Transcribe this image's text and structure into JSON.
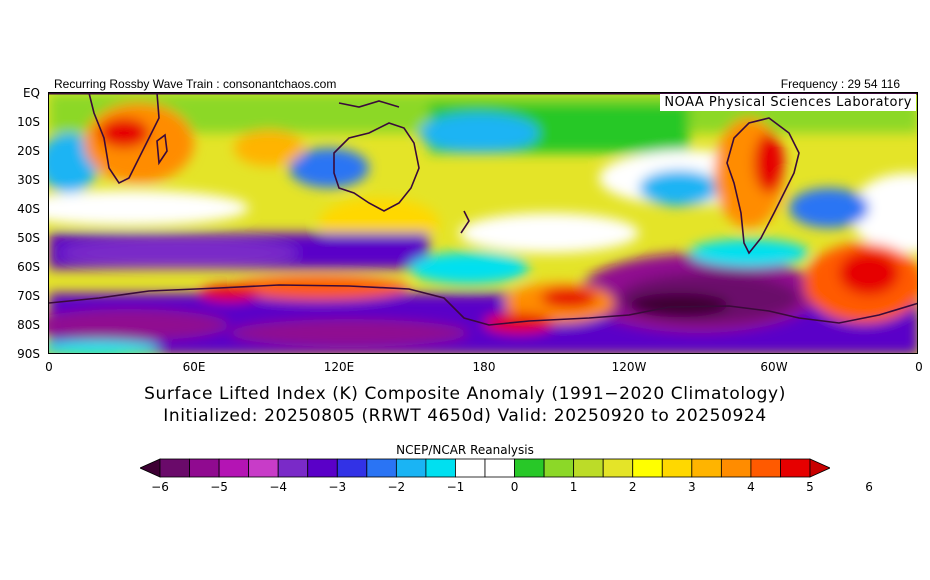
{
  "header": {
    "left": "Recurring Rossby Wave Train : consonantchaos.com",
    "right": "Frequency : 29 54 116",
    "lab": "NOAA Physical Sciences Laboratory"
  },
  "axes": {
    "lat_labels": [
      "EQ",
      "10S",
      "20S",
      "30S",
      "40S",
      "50S",
      "60S",
      "70S",
      "80S",
      "90S"
    ],
    "lon_labels": [
      "0",
      "60E",
      "120E",
      "180",
      "120W",
      "60W",
      "0"
    ]
  },
  "title": {
    "line1": "Surface Lifted Index (K) Composite Anomaly (1991−2020 Climatology)",
    "line2": "Initialized: 20250805 (RRWT 4650d) Valid: 20250920 to 20250924"
  },
  "colorbar": {
    "title": "NCEP/NCAR Reanalysis",
    "tick_labels": [
      "−6",
      "−5",
      "−4",
      "−3",
      "−2",
      "−1",
      "0",
      "1",
      "2",
      "3",
      "4",
      "5",
      "6"
    ],
    "colors": [
      "#3d0033",
      "#6a0a6a",
      "#900a90",
      "#b414b4",
      "#c83cc8",
      "#7a2ac8",
      "#5a00c8",
      "#3232e6",
      "#2a74f4",
      "#1ab4f4",
      "#00e0f0",
      "#ffffff",
      "#ffffff",
      "#28c828",
      "#8cd828",
      "#bcdc28",
      "#e4e428",
      "#ffff00",
      "#ffd800",
      "#ffb400",
      "#ff8c00",
      "#ff5a00",
      "#e60000",
      "#c80000"
    ]
  },
  "colors": {
    "background": "#ffffff",
    "coastline": "#3a0a3a",
    "neutral": "#ffffff"
  }
}
